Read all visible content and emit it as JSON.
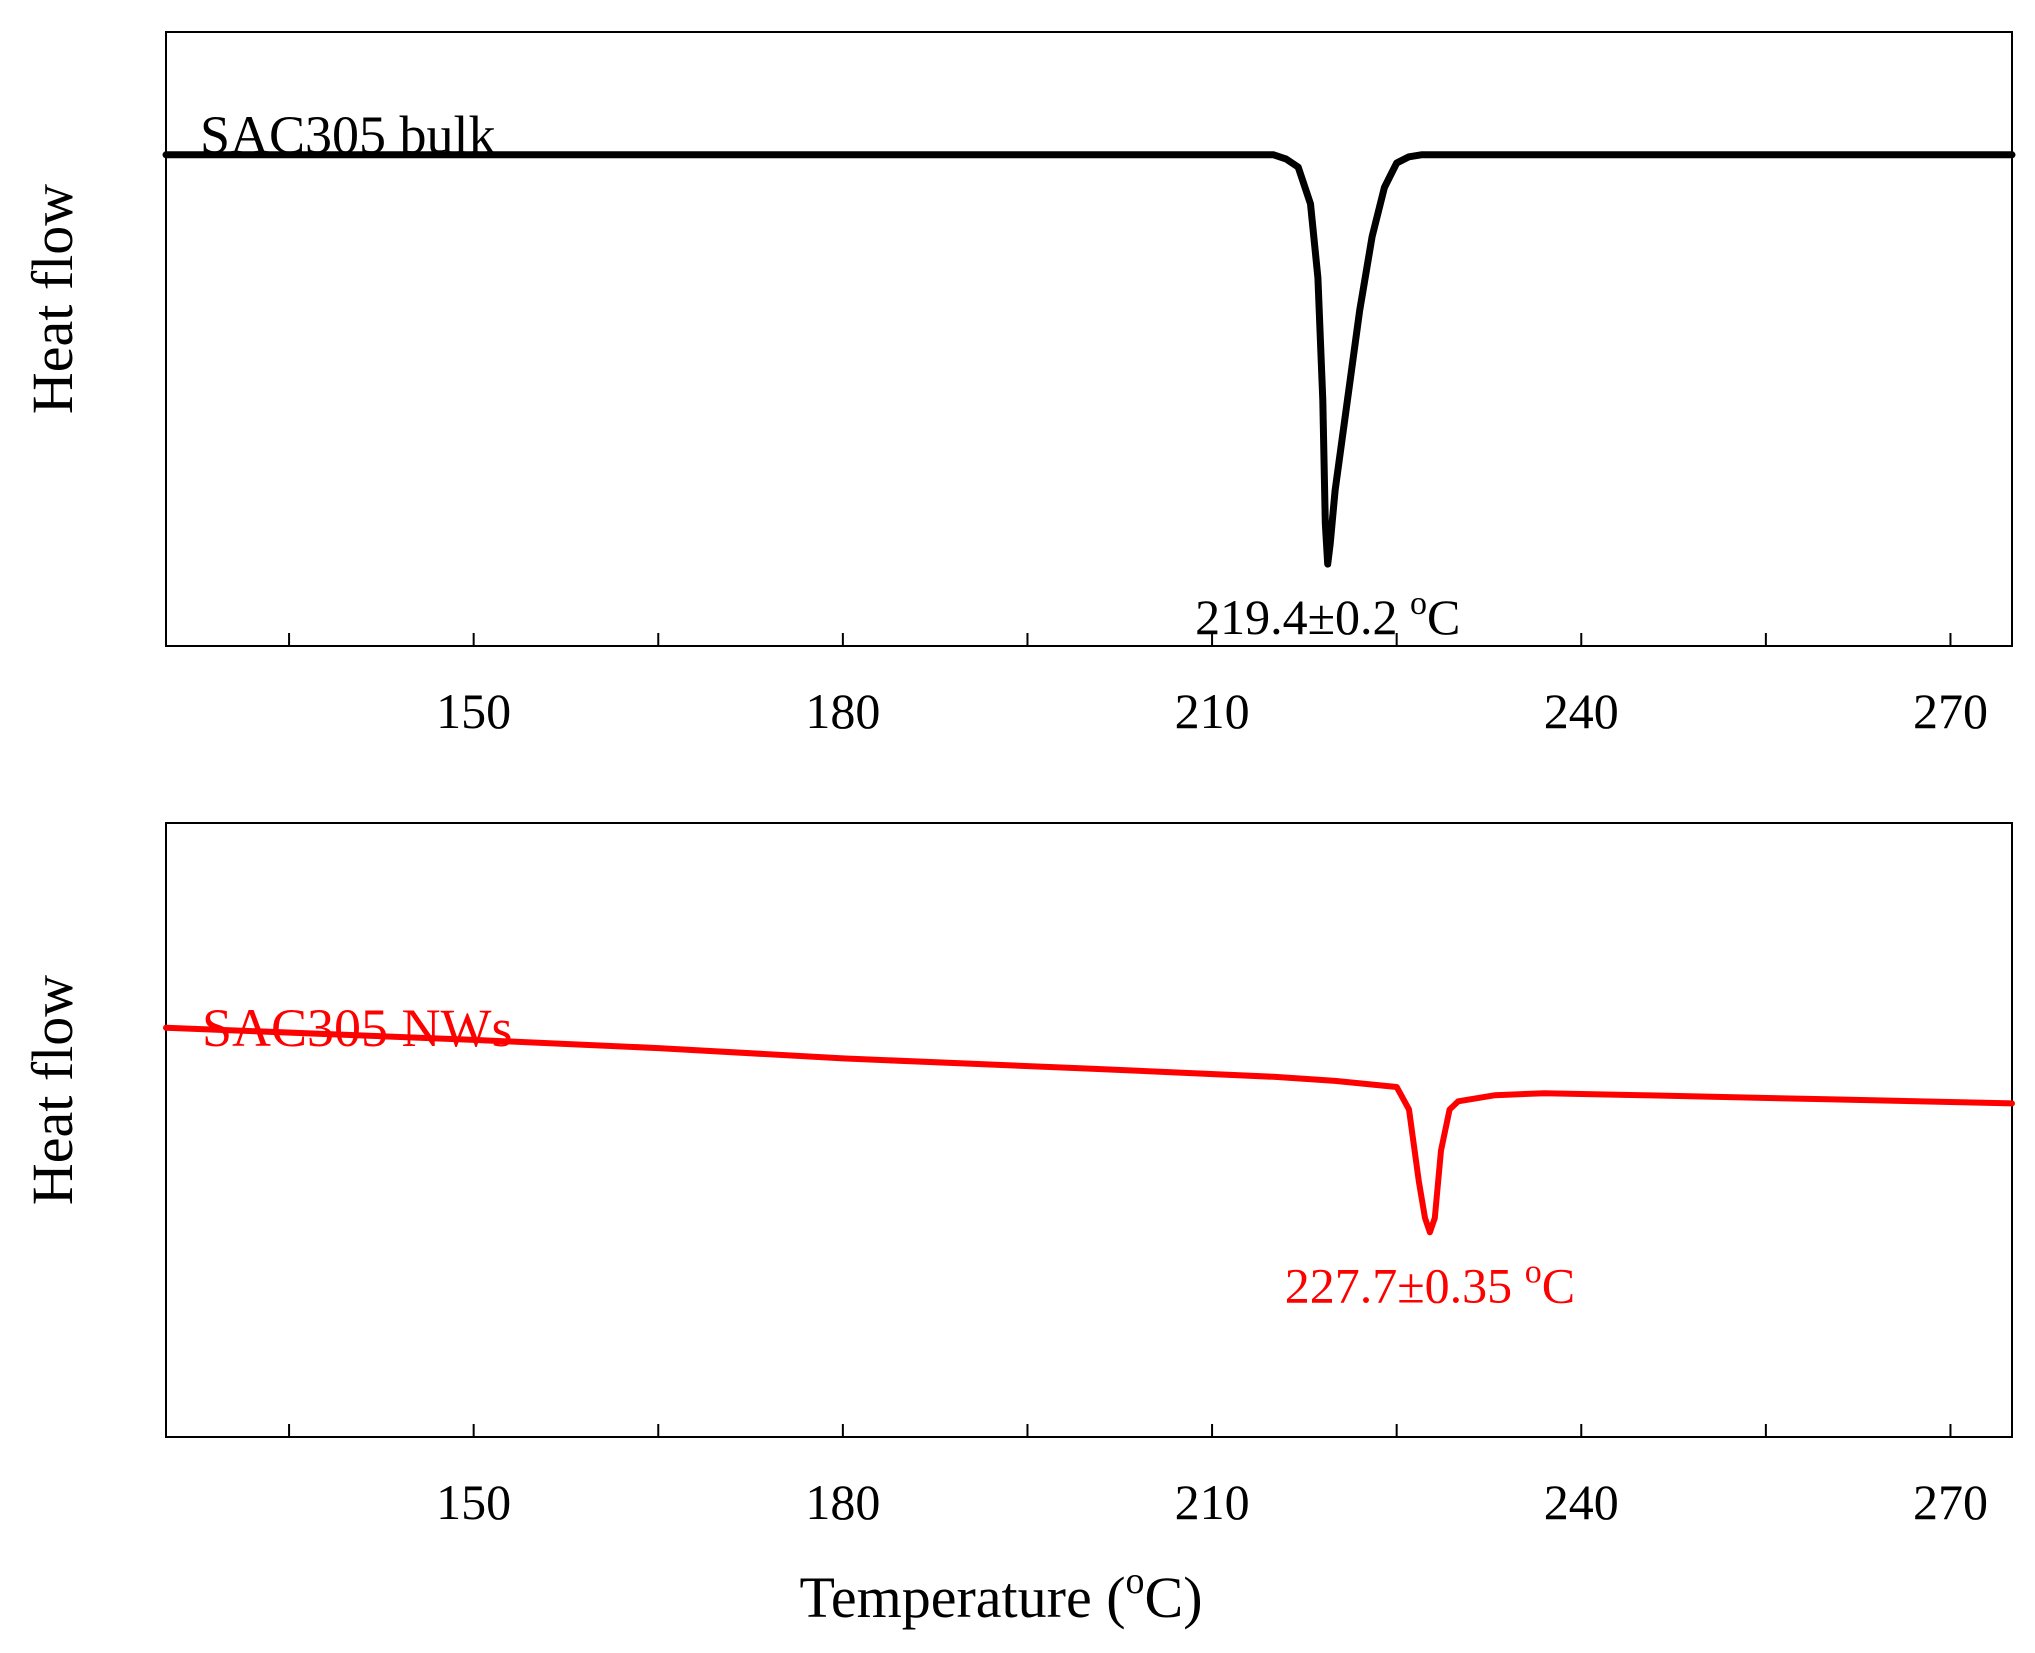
{
  "colors": {
    "bulk": "#000000",
    "nanowires": "#ff0000",
    "axes": "#000000"
  },
  "chart_data": [
    {
      "type": "line",
      "panel": "top",
      "panel_label": "SAC305 bulk",
      "ylabel": "Heat flow",
      "xlabel": "",
      "xlim": [
        125,
        275
      ],
      "x_ticks": [
        150,
        180,
        210,
        240,
        270
      ],
      "x_minor_ticks": [
        135,
        165,
        195,
        225,
        255
      ],
      "ylim": [
        -1.2,
        0.3
      ],
      "y_ticks_shown": false,
      "grid": false,
      "series": [
        {
          "name": "SAC305 bulk",
          "color": "#000000",
          "x": [
            125,
            150,
            180,
            210,
            215,
            216,
            217,
            218,
            218.6,
            219.0,
            219.2,
            219.4,
            219.6,
            220.0,
            221.0,
            222.0,
            223.0,
            224.0,
            225.0,
            226.0,
            227.0,
            230,
            240,
            275
          ],
          "y": [
            0,
            0,
            0,
            0,
            0,
            -0.01,
            -0.03,
            -0.12,
            -0.3,
            -0.6,
            -0.9,
            -1.0,
            -0.95,
            -0.82,
            -0.6,
            -0.38,
            -0.2,
            -0.08,
            -0.02,
            -0.005,
            0,
            0,
            0,
            0
          ]
        }
      ],
      "annotations": [
        {
          "text": "219.4±0.2 ",
          "superscript": "o",
          "unit": "C",
          "x": 219.4,
          "y": -1.0
        }
      ]
    },
    {
      "type": "line",
      "panel": "bottom",
      "panel_label": "SAC305 NWs",
      "ylabel": "Heat flow",
      "xlabel": "Temperature (",
      "xlabel_superscript": "o",
      "xlabel_suffix": "C)",
      "xlim": [
        125,
        275
      ],
      "x_ticks": [
        150,
        180,
        210,
        240,
        270
      ],
      "x_minor_ticks": [
        135,
        165,
        195,
        225,
        255
      ],
      "ylim": [
        -2.0,
        1.0
      ],
      "y_ticks_shown": false,
      "grid": false,
      "series": [
        {
          "name": "SAC305 NWs",
          "color": "#ff0000",
          "x": [
            125,
            150,
            165,
            180,
            200,
            215,
            220,
            225,
            226.0,
            226.8,
            227.3,
            227.7,
            228.1,
            228.6,
            229.3,
            230,
            233,
            237,
            245,
            260,
            275
          ],
          "y": [
            0,
            -0.06,
            -0.1,
            -0.15,
            -0.2,
            -0.24,
            -0.26,
            -0.29,
            -0.4,
            -0.75,
            -0.93,
            -1.0,
            -0.93,
            -0.6,
            -0.4,
            -0.36,
            -0.33,
            -0.32,
            -0.33,
            -0.35,
            -0.37
          ]
        }
      ],
      "annotations": [
        {
          "text": "227.7±0.35 ",
          "superscript": "o",
          "unit": "C",
          "x": 227.7,
          "y": -1.0
        }
      ]
    }
  ]
}
